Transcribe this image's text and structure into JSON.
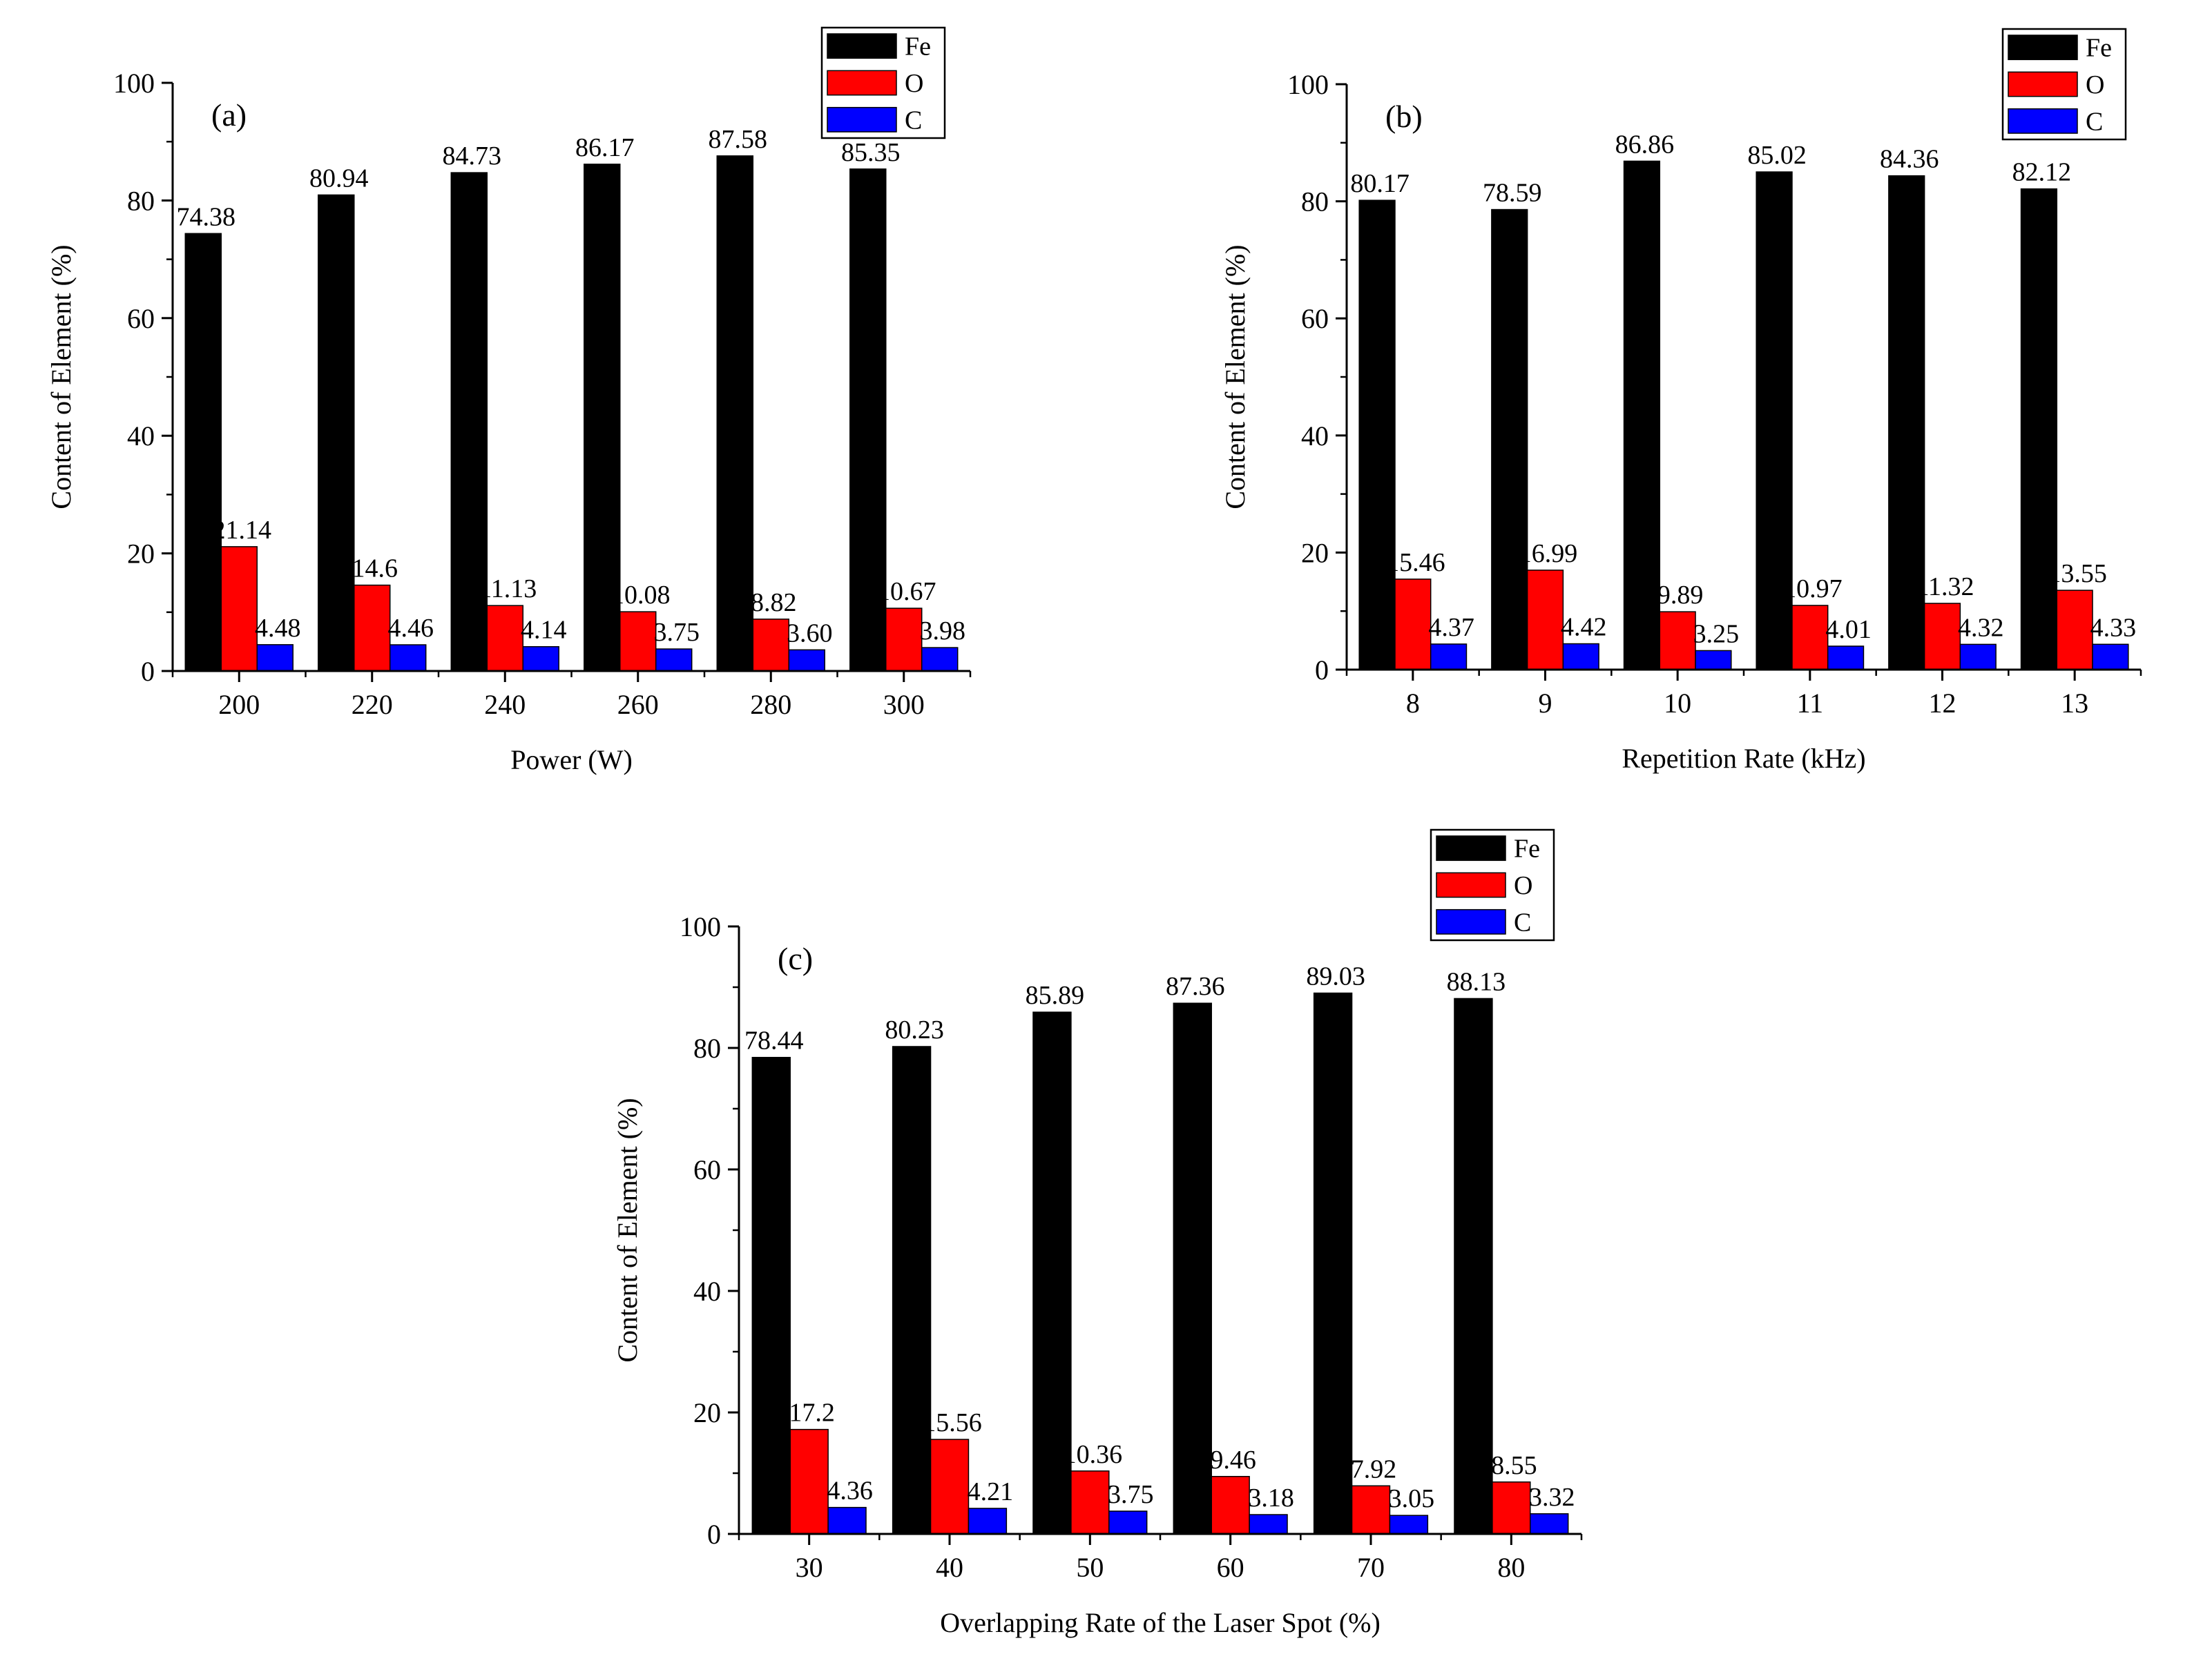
{
  "chart_data": [
    {
      "type": "bar",
      "panel_label": "(a)",
      "categories": [
        "200",
        "220",
        "240",
        "260",
        "280",
        "300"
      ],
      "series": [
        {
          "name": "Fe",
          "color": "#000000",
          "values": [
            74.38,
            80.94,
            84.73,
            86.17,
            87.58,
            85.35
          ],
          "labels": [
            "74.38",
            "80.94",
            "84.73",
            "86.17",
            "87.58",
            "85.35"
          ]
        },
        {
          "name": "O",
          "color": "#ff0000",
          "values": [
            21.14,
            14.6,
            11.13,
            10.08,
            8.82,
            10.67
          ],
          "labels": [
            "21.14",
            "14.6",
            "11.13",
            "10.08",
            "8.82",
            "10.67"
          ]
        },
        {
          "name": "C",
          "color": "#0000ff",
          "values": [
            4.48,
            4.46,
            4.14,
            3.75,
            3.6,
            3.98
          ],
          "labels": [
            "4.48",
            "4.46",
            "4.14",
            "3.75",
            "3.60",
            "3.98"
          ]
        }
      ],
      "xlabel": "Power (W)",
      "ylabel": "Content of Element (%)",
      "ylim": [
        0,
        100
      ],
      "yticks": [
        "0",
        "20",
        "40",
        "60",
        "80",
        "100"
      ],
      "grid": false,
      "legend": "top-right, outside"
    },
    {
      "type": "bar",
      "panel_label": "(b)",
      "categories": [
        "8",
        "9",
        "10",
        "11",
        "12",
        "13"
      ],
      "series": [
        {
          "name": "Fe",
          "color": "#000000",
          "values": [
            80.17,
            78.59,
            86.86,
            85.02,
            84.36,
            82.12
          ],
          "labels": [
            "80.17",
            "78.59",
            "86.86",
            "85.02",
            "84.36",
            "82.12"
          ]
        },
        {
          "name": "O",
          "color": "#ff0000",
          "values": [
            15.46,
            16.99,
            9.89,
            10.97,
            11.32,
            13.55
          ],
          "labels": [
            "15.46",
            "16.99",
            "9.89",
            "10.97",
            "11.32",
            "13.55"
          ]
        },
        {
          "name": "C",
          "color": "#0000ff",
          "values": [
            4.37,
            4.42,
            3.25,
            4.01,
            4.32,
            4.33
          ],
          "labels": [
            "4.37",
            "4.42",
            "3.25",
            "4.01",
            "4.32",
            "4.33"
          ]
        }
      ],
      "xlabel": "Repetition Rate (kHz)",
      "ylabel": "Content of Element (%)",
      "ylim": [
        0,
        100
      ],
      "yticks": [
        "0",
        "20",
        "40",
        "60",
        "80",
        "100"
      ],
      "grid": false,
      "legend": "top-right, outside"
    },
    {
      "type": "bar",
      "panel_label": "(c)",
      "categories": [
        "30",
        "40",
        "50",
        "60",
        "70",
        "80"
      ],
      "series": [
        {
          "name": "Fe",
          "color": "#000000",
          "values": [
            78.44,
            80.23,
            85.89,
            87.36,
            89.03,
            88.13
          ],
          "labels": [
            "78.44",
            "80.23",
            "85.89",
            "87.36",
            "89.03",
            "88.13"
          ]
        },
        {
          "name": "O",
          "color": "#ff0000",
          "values": [
            17.2,
            15.56,
            10.36,
            9.46,
            7.92,
            8.55
          ],
          "labels": [
            "17.2",
            "15.56",
            "10.36",
            "9.46",
            "7.92",
            "8.55"
          ]
        },
        {
          "name": "C",
          "color": "#0000ff",
          "values": [
            4.36,
            4.21,
            3.75,
            3.18,
            3.05,
            3.32
          ],
          "labels": [
            "4.36",
            "4.21",
            "3.75",
            "3.18",
            "3.05",
            "3.32"
          ]
        }
      ],
      "xlabel": "Overlapping Rate of the Laser Spot (%)",
      "ylabel": "Content of Element (%)",
      "ylim": [
        0,
        100
      ],
      "yticks": [
        "0",
        "20",
        "40",
        "60",
        "80",
        "100"
      ],
      "grid": false,
      "legend": "top-right, outside"
    }
  ]
}
